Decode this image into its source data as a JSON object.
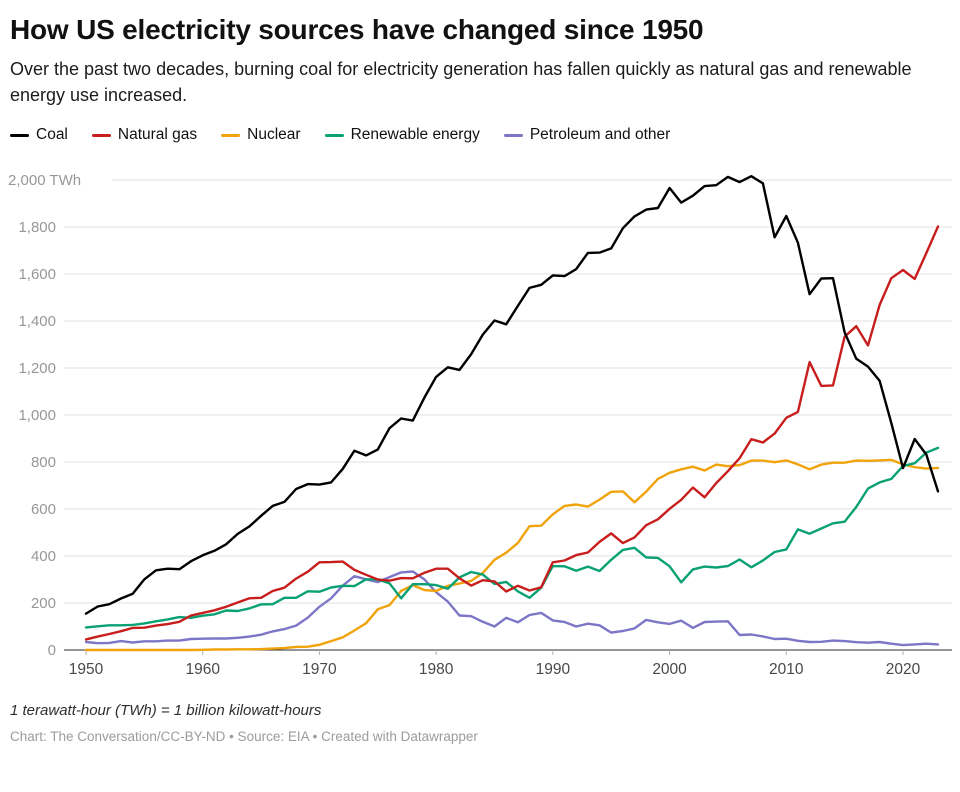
{
  "header": {
    "title": "How US electricity sources have changed since 1950",
    "subtitle": "Over the past two decades, burning coal for electricity generation has fallen quickly as natural gas and renewable energy use increased."
  },
  "footer": {
    "note": "1 terawatt-hour (TWh) = 1 billion kilowatt-hours",
    "credit": "Chart: The Conversation/CC-BY-ND • Source: EIA • Created with Datawrapper"
  },
  "chart_data": {
    "type": "line",
    "title": "How US electricity sources have changed since 1950",
    "y_unit": "TWh",
    "y_top_label": "2,000 TWh",
    "ylim": [
      0,
      2000
    ],
    "yticks": [
      0,
      200,
      400,
      600,
      800,
      1000,
      1200,
      1400,
      1600,
      1800,
      2000
    ],
    "xticks": [
      1950,
      1960,
      1970,
      1980,
      1990,
      2000,
      2010,
      2020
    ],
    "x_range": [
      1950,
      2023
    ],
    "grid": "horizontal",
    "legend_position": "top",
    "colors": {
      "grid": "#e0e0e0",
      "axis": "#2f2f2f",
      "ytick_text": "#979797",
      "xtick_text": "#494949",
      "tick_mark": "#b3b3b3"
    },
    "x": [
      1950,
      1951,
      1952,
      1953,
      1954,
      1955,
      1956,
      1957,
      1958,
      1959,
      1960,
      1961,
      1962,
      1963,
      1964,
      1965,
      1966,
      1967,
      1968,
      1969,
      1970,
      1971,
      1972,
      1973,
      1974,
      1975,
      1976,
      1977,
      1978,
      1979,
      1980,
      1981,
      1982,
      1983,
      1984,
      1985,
      1986,
      1987,
      1988,
      1989,
      1990,
      1991,
      1992,
      1993,
      1994,
      1995,
      1996,
      1997,
      1998,
      1999,
      2000,
      2001,
      2002,
      2003,
      2004,
      2005,
      2006,
      2007,
      2008,
      2009,
      2010,
      2011,
      2012,
      2013,
      2014,
      2015,
      2016,
      2017,
      2018,
      2019,
      2020,
      2021,
      2022,
      2023
    ],
    "series": [
      {
        "name": "Coal",
        "color": "#000000",
        "values": [
          155,
          185,
          195,
          219,
          239,
          301,
          339,
          346,
          344,
          378,
          403,
          422,
          450,
          494,
          526,
          571,
          613,
          630,
          685,
          706,
          704,
          713,
          771,
          848,
          828,
          853,
          944,
          985,
          976,
          1075,
          1162,
          1203,
          1192,
          1259,
          1342,
          1402,
          1386,
          1464,
          1541,
          1554,
          1594,
          1591,
          1621,
          1690,
          1691,
          1709,
          1795,
          1845,
          1874,
          1881,
          1966,
          1904,
          1933,
          1974,
          1978,
          2013,
          1991,
          2016,
          1986,
          1756,
          1847,
          1733,
          1514,
          1581,
          1582,
          1352,
          1239,
          1206,
          1146,
          966,
          774,
          898,
          832,
          675
        ]
      },
      {
        "name": "Natural gas",
        "color": "#c71e1d",
        "values": [
          45,
          57,
          68,
          80,
          94,
          95,
          104,
          110,
          120,
          147,
          158,
          169,
          184,
          202,
          220,
          222,
          251,
          265,
          304,
          333,
          373,
          374,
          376,
          341,
          320,
          300,
          295,
          306,
          305,
          329,
          346,
          346,
          305,
          274,
          297,
          292,
          249,
          273,
          253,
          267,
          373,
          381,
          404,
          415,
          460,
          496,
          455,
          479,
          531,
          556,
          601,
          639,
          691,
          650,
          710,
          761,
          816,
          897,
          883,
          921,
          988,
          1013,
          1225,
          1124,
          1126,
          1333,
          1378,
          1296,
          1468,
          1582,
          1617,
          1579,
          1689,
          1802
        ]
      },
      {
        "name": "Nuclear",
        "color": "#f0a30a",
        "values": [
          0,
          0,
          0,
          0,
          0,
          0,
          0,
          0,
          0,
          0,
          1,
          2,
          2,
          3,
          3,
          4,
          6,
          8,
          13,
          14,
          22,
          38,
          54,
          83,
          114,
          173,
          191,
          251,
          276,
          255,
          251,
          273,
          283,
          294,
          328,
          384,
          414,
          455,
          527,
          529,
          577,
          613,
          619,
          610,
          640,
          673,
          675,
          629,
          674,
          728,
          754,
          769,
          780,
          764,
          789,
          782,
          787,
          806,
          806,
          799,
          807,
          790,
          769,
          789,
          797,
          797,
          806,
          805,
          807,
          809,
          790,
          778,
          772,
          775
        ]
      },
      {
        "name": "Renewable energy",
        "color": "#09a173",
        "values": [
          96,
          101,
          105,
          105,
          107,
          113,
          122,
          130,
          140,
          137,
          146,
          152,
          168,
          166,
          177,
          194,
          195,
          222,
          222,
          250,
          248,
          266,
          273,
          272,
          301,
          300,
          284,
          220,
          280,
          280,
          276,
          261,
          309,
          332,
          321,
          281,
          290,
          250,
          222,
          265,
          357,
          356,
          337,
          355,
          336,
          384,
          426,
          435,
          394,
          392,
          356,
          288,
          343,
          355,
          351,
          357,
          385,
          352,
          381,
          417,
          428,
          513,
          495,
          517,
          539,
          546,
          609,
          687,
          713,
          728,
          783,
          795,
          840,
          860
        ]
      },
      {
        "name": "Petroleum and other",
        "color": "#7d76c6",
        "values": [
          34,
          29,
          30,
          38,
          32,
          37,
          37,
          40,
          40,
          47,
          48,
          49,
          49,
          52,
          57,
          65,
          79,
          89,
          104,
          138,
          184,
          220,
          274,
          314,
          301,
          289,
          310,
          330,
          334,
          300,
          246,
          206,
          147,
          144,
          120,
          100,
          137,
          118,
          149,
          158,
          126,
          119,
          100,
          112,
          105,
          74,
          81,
          92,
          128,
          118,
          111,
          125,
          94,
          119,
          121,
          122,
          64,
          66,
          58,
          47,
          48,
          39,
          34,
          35,
          40,
          38,
          33,
          31,
          34,
          27,
          21,
          24,
          27,
          24
        ]
      }
    ]
  }
}
